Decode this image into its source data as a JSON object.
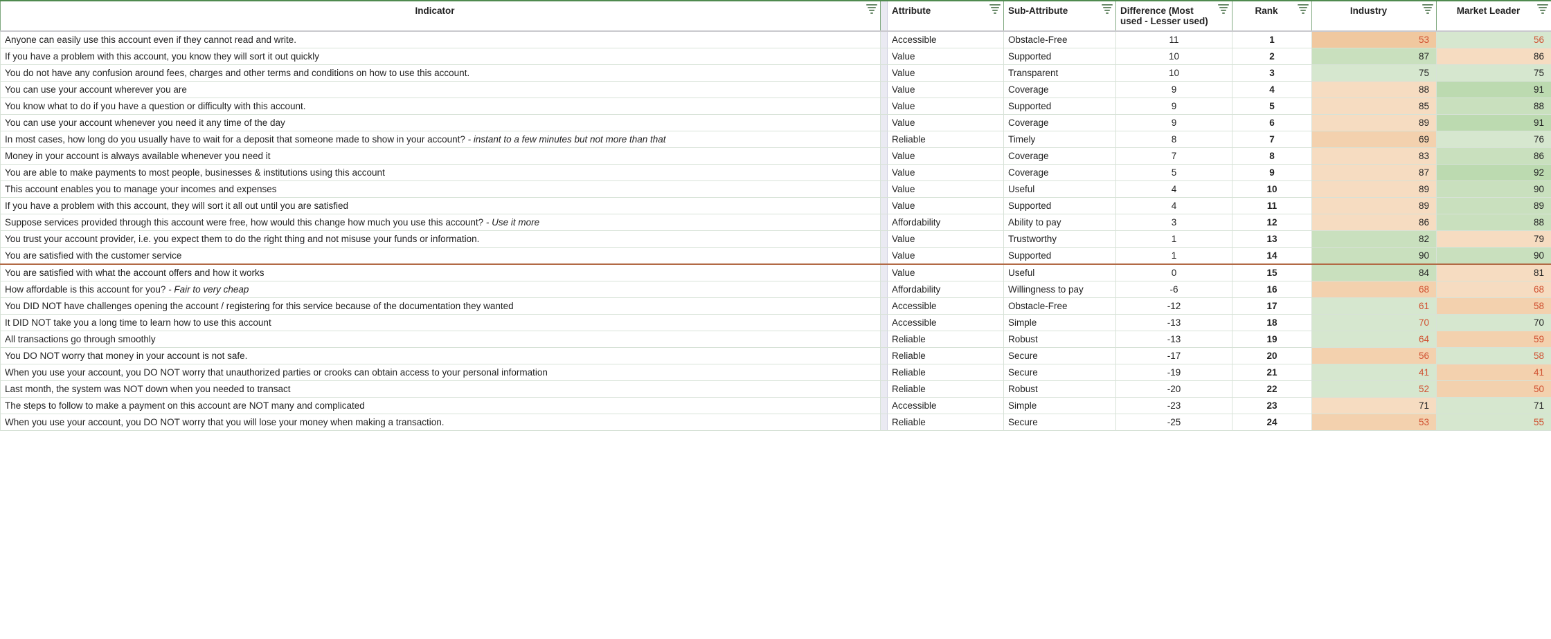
{
  "columns": {
    "indicator": "Indicator",
    "attribute": "Attribute",
    "sub_attribute": "Sub-Attribute",
    "difference": "Difference (Most used - Lesser used)",
    "rank": "Rank",
    "industry": "Industry",
    "market_leader": "Market Leader"
  },
  "palette": {
    "header_border": "#4f8a4f",
    "cell_border": "#d7e2d7",
    "gap_bg": "#eaeaf2",
    "green_l": "#d6e7cf",
    "green_m": "#c9e0be",
    "green_d": "#bcdab0",
    "orange_l": "#f6dcc1",
    "orange_m": "#f3d1ae",
    "orange_d": "#f0c89f",
    "fg_red": "#d05030",
    "sep_red": "#b26a45"
  },
  "rows": [
    {
      "indicator": "Anyone can easily use this account even if they cannot read and write.",
      "attribute": "Accessible",
      "sub": "Obstacle-Free",
      "diff": "11",
      "rank": "1",
      "industry": {
        "v": "53",
        "bg": "bg-orange-d",
        "fg": "fg-red"
      },
      "market": {
        "v": "56",
        "bg": "bg-green-l",
        "fg": "fg-red"
      }
    },
    {
      "indicator": "If you have a problem with this account, you know they will sort it out quickly",
      "attribute": "Value",
      "sub": "Supported",
      "diff": "10",
      "rank": "2",
      "industry": {
        "v": "87",
        "bg": "bg-green-m",
        "fg": ""
      },
      "market": {
        "v": "86",
        "bg": "bg-orange-l",
        "fg": ""
      }
    },
    {
      "indicator": "You do not have any confusion around fees, charges and other terms and conditions on how to use this account.",
      "attribute": "Value",
      "sub": "Transparent",
      "diff": "10",
      "rank": "3",
      "industry": {
        "v": "75",
        "bg": "bg-green-l",
        "fg": ""
      },
      "market": {
        "v": "75",
        "bg": "bg-green-l",
        "fg": ""
      }
    },
    {
      "indicator": "You can use your account wherever you are",
      "attribute": "Value",
      "sub": "Coverage",
      "diff": "9",
      "rank": "4",
      "industry": {
        "v": "88",
        "bg": "bg-orange-l",
        "fg": ""
      },
      "market": {
        "v": "91",
        "bg": "bg-green-d",
        "fg": ""
      }
    },
    {
      "indicator": "You know what to do if you have a question or difficulty with this account.",
      "attribute": "Value",
      "sub": "Supported",
      "diff": "9",
      "rank": "5",
      "industry": {
        "v": "85",
        "bg": "bg-orange-l",
        "fg": ""
      },
      "market": {
        "v": "88",
        "bg": "bg-green-m",
        "fg": ""
      }
    },
    {
      "indicator": "You can use your account whenever you need it any time of the day",
      "attribute": "Value",
      "sub": "Coverage",
      "diff": "9",
      "rank": "6",
      "industry": {
        "v": "89",
        "bg": "bg-orange-l",
        "fg": ""
      },
      "market": {
        "v": "91",
        "bg": "bg-green-d",
        "fg": ""
      }
    },
    {
      "indicator_html": "In most cases, how long do you usually have to wait for a deposit that someone made to show in your account? <span class=\"italic-tail\">- instant to a few minutes but not more than that</span>",
      "attribute": "Reliable",
      "sub": "Timely",
      "diff": "8",
      "rank": "7",
      "industry": {
        "v": "69",
        "bg": "bg-orange-m",
        "fg": ""
      },
      "market": {
        "v": "76",
        "bg": "bg-green-l",
        "fg": ""
      }
    },
    {
      "indicator": "Money in your account is always available whenever you need it",
      "attribute": "Value",
      "sub": "Coverage",
      "diff": "7",
      "rank": "8",
      "industry": {
        "v": "83",
        "bg": "bg-orange-l",
        "fg": ""
      },
      "market": {
        "v": "86",
        "bg": "bg-green-m",
        "fg": ""
      }
    },
    {
      "indicator": "You are able to make payments to most people, businesses & institutions using this account",
      "attribute": "Value",
      "sub": "Coverage",
      "diff": "5",
      "rank": "9",
      "industry": {
        "v": "87",
        "bg": "bg-orange-l",
        "fg": ""
      },
      "market": {
        "v": "92",
        "bg": "bg-green-d",
        "fg": ""
      }
    },
    {
      "indicator": "This account enables you to manage your incomes and expenses",
      "attribute": "Value",
      "sub": "Useful",
      "diff": "4",
      "rank": "10",
      "industry": {
        "v": "89",
        "bg": "bg-orange-l",
        "fg": ""
      },
      "market": {
        "v": "90",
        "bg": "bg-green-m",
        "fg": ""
      }
    },
    {
      "indicator": "If you have a problem with this account, they will sort it all out until you are satisfied",
      "attribute": "Value",
      "sub": "Supported",
      "diff": "4",
      "rank": "11",
      "industry": {
        "v": "89",
        "bg": "bg-orange-l",
        "fg": ""
      },
      "market": {
        "v": "89",
        "bg": "bg-green-m",
        "fg": ""
      }
    },
    {
      "indicator_html": "Suppose services provided through this account were free, how would this change how much you use this account? <span class=\"italic-tail\">- Use it more</span>",
      "attribute": "Affordability",
      "sub": "Ability to pay",
      "diff": "3",
      "rank": "12",
      "industry": {
        "v": "86",
        "bg": "bg-orange-l",
        "fg": ""
      },
      "market": {
        "v": "88",
        "bg": "bg-green-m",
        "fg": ""
      }
    },
    {
      "indicator": "You trust your account provider, i.e. you expect them to do the right thing and not misuse your funds or information.",
      "attribute": "Value",
      "sub": "Trustworthy",
      "diff": "1",
      "rank": "13",
      "industry": {
        "v": "82",
        "bg": "bg-green-m",
        "fg": ""
      },
      "market": {
        "v": "79",
        "bg": "bg-orange-l",
        "fg": ""
      }
    },
    {
      "indicator": "You are satisfied with the customer service",
      "attribute": "Value",
      "sub": "Supported",
      "diff": "1",
      "rank": "14",
      "industry": {
        "v": "90",
        "bg": "bg-green-m",
        "fg": ""
      },
      "market": {
        "v": "90",
        "bg": "bg-green-m",
        "fg": ""
      },
      "sep_after": true
    },
    {
      "indicator": "You are satisfied with what the account offers and how it works",
      "attribute": "Value",
      "sub": "Useful",
      "diff": "0",
      "rank": "15",
      "industry": {
        "v": "84",
        "bg": "bg-green-m",
        "fg": ""
      },
      "market": {
        "v": "81",
        "bg": "bg-orange-l",
        "fg": ""
      }
    },
    {
      "indicator_html": "How affordable is this account for you? <span class=\"italic-tail\">- Fair to very cheap</span>",
      "attribute": "Affordability",
      "sub": "Willingness to pay",
      "diff": "-6",
      "rank": "16",
      "industry": {
        "v": "68",
        "bg": "bg-orange-m",
        "fg": "fg-red"
      },
      "market": {
        "v": "68",
        "bg": "bg-orange-l",
        "fg": "fg-red"
      }
    },
    {
      "indicator": "You DID NOT have challenges opening the account / registering for this service because of the documentation they wanted",
      "attribute": "Accessible",
      "sub": "Obstacle-Free",
      "diff": "-12",
      "rank": "17",
      "industry": {
        "v": "61",
        "bg": "bg-green-l",
        "fg": "fg-red"
      },
      "market": {
        "v": "58",
        "bg": "bg-orange-m",
        "fg": "fg-red"
      }
    },
    {
      "indicator": "It DID NOT take you a long time to learn how to use this account",
      "attribute": "Accessible",
      "sub": "Simple",
      "diff": "-13",
      "rank": "18",
      "industry": {
        "v": "70",
        "bg": "bg-green-l",
        "fg": "fg-red"
      },
      "market": {
        "v": "70",
        "bg": "bg-green-l",
        "fg": ""
      }
    },
    {
      "indicator": "All transactions go through smoothly",
      "attribute": "Reliable",
      "sub": "Robust",
      "diff": "-13",
      "rank": "19",
      "industry": {
        "v": "64",
        "bg": "bg-green-l",
        "fg": "fg-red"
      },
      "market": {
        "v": "59",
        "bg": "bg-orange-m",
        "fg": "fg-red"
      }
    },
    {
      "indicator": "You DO NOT worry that money in your account is not safe.",
      "attribute": "Reliable",
      "sub": "Secure",
      "diff": "-17",
      "rank": "20",
      "industry": {
        "v": "56",
        "bg": "bg-orange-m",
        "fg": "fg-red"
      },
      "market": {
        "v": "58",
        "bg": "bg-green-l",
        "fg": "fg-red"
      }
    },
    {
      "indicator": "When you use your account, you DO NOT worry that unauthorized parties or crooks can obtain access to your personal information",
      "attribute": "Reliable",
      "sub": "Secure",
      "diff": "-19",
      "rank": "21",
      "industry": {
        "v": "41",
        "bg": "bg-green-l",
        "fg": "fg-red"
      },
      "market": {
        "v": "41",
        "bg": "bg-orange-m",
        "fg": "fg-red"
      }
    },
    {
      "indicator": "Last month, the system was NOT down when you needed to transact",
      "attribute": "Reliable",
      "sub": "Robust",
      "diff": "-20",
      "rank": "22",
      "industry": {
        "v": "52",
        "bg": "bg-green-l",
        "fg": "fg-red"
      },
      "market": {
        "v": "50",
        "bg": "bg-orange-m",
        "fg": "fg-red"
      }
    },
    {
      "indicator": "The steps to follow to make a payment on this account are NOT many and complicated",
      "attribute": "Accessible",
      "sub": "Simple",
      "diff": "-23",
      "rank": "23",
      "industry": {
        "v": "71",
        "bg": "bg-orange-l",
        "fg": ""
      },
      "market": {
        "v": "71",
        "bg": "bg-green-l",
        "fg": ""
      }
    },
    {
      "indicator": "When you use your account, you DO NOT worry that you will lose your money when making a transaction.",
      "attribute": "Reliable",
      "sub": "Secure",
      "diff": "-25",
      "rank": "24",
      "industry": {
        "v": "53",
        "bg": "bg-orange-m",
        "fg": "fg-red"
      },
      "market": {
        "v": "55",
        "bg": "bg-green-l",
        "fg": "fg-red"
      }
    }
  ]
}
